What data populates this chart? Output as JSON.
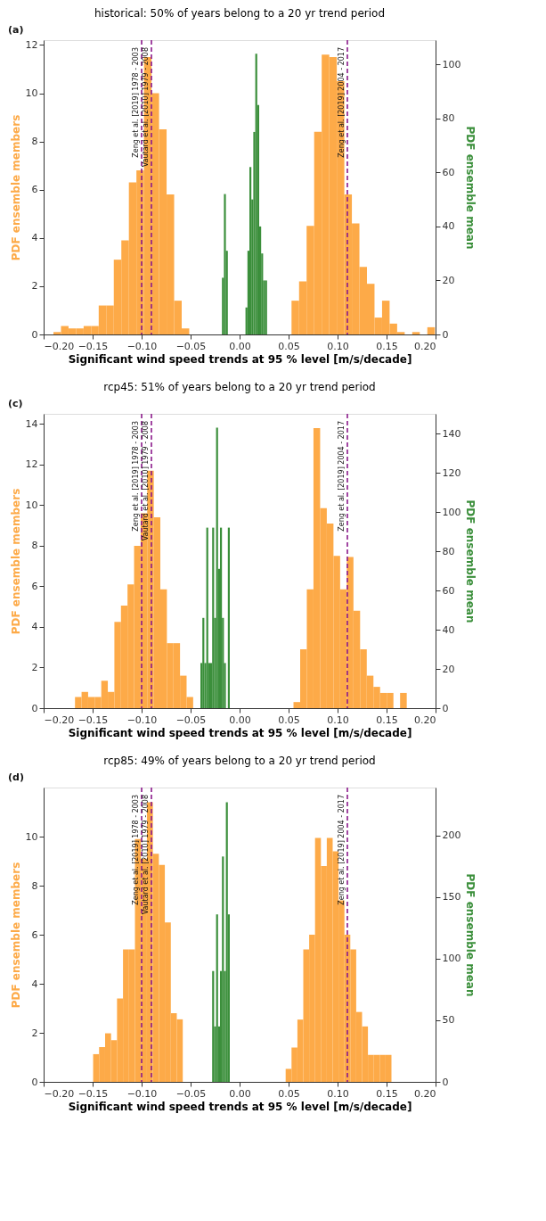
{
  "chart_data": [
    {
      "type": "histogram",
      "title": "historical: 50% of years belong to a 20 yr trend period",
      "xlabel": "Significant wind speed trends at 95 % level [m/s/decade]",
      "ylabel": "PDF ensemble members",
      "y2label": "PDF ensemble mean",
      "annotations": [
        "(a)"
      ],
      "xlim": [
        -0.2,
        0.2
      ],
      "xticks": [
        {
          "value": -0.2,
          "label": "−0.20"
        },
        {
          "value": -0.15,
          "label": "−0.15"
        },
        {
          "value": -0.1,
          "label": "−0.10"
        },
        {
          "value": -0.05,
          "label": "−0.05"
        },
        {
          "value": 0.0,
          "label": "0.00"
        },
        {
          "value": 0.05,
          "label": "0.05"
        },
        {
          "value": 0.1,
          "label": "0.10"
        },
        {
          "value": 0.15,
          "label": "0.15"
        },
        {
          "value": 0.2,
          "label": "0.20"
        }
      ],
      "ylim": [
        0,
        12.2
      ],
      "yticks": [
        0,
        2,
        4,
        6,
        8,
        10,
        12
      ],
      "y2lim": [
        0,
        109
      ],
      "y2ticks": [
        0,
        20,
        40,
        60,
        80,
        100
      ],
      "grid": false,
      "bins": [
        -0.19,
        -0.1823,
        -0.1746,
        -0.1669,
        -0.1592,
        -0.1515,
        -0.1438,
        -0.1361,
        -0.1284,
        -0.1207,
        -0.113,
        -0.1053,
        -0.0976,
        -0.0899,
        -0.0822,
        -0.0745,
        -0.0668,
        -0.0591,
        -0.0514,
        -0.018,
        -0.016,
        -0.014,
        -0.012,
        0.006,
        0.008,
        0.01,
        0.012,
        0.014,
        0.016,
        0.018,
        0.02,
        0.022,
        0.024,
        0.026,
        0.028,
        0.053,
        0.0607,
        0.0684,
        0.0761,
        0.0838,
        0.0915,
        0.0992,
        0.1069,
        0.1146,
        0.1223,
        0.13,
        0.1377,
        0.1454,
        0.1531,
        0.1608,
        0.1685,
        0.1762,
        0.1839,
        0.1916,
        0.1993
      ],
      "series": [
        {
          "color": "#fdaa48",
          "axis": "y",
          "values": [
            0.1,
            0.35,
            0.25,
            0.25,
            0.35,
            0.35,
            1.2,
            1.2,
            3.1,
            3.9,
            6.3,
            6.8,
            11.5,
            10,
            8.5,
            5.8,
            1.4,
            0.25,
            null,
            null,
            null,
            null,
            null,
            null,
            null,
            null,
            null,
            null,
            null,
            null,
            null,
            null,
            null,
            null,
            null,
            1.4,
            2.2,
            4.5,
            8.4,
            11.6,
            11.5,
            10.5,
            5.8,
            4.6,
            2.8,
            2.1,
            0.7,
            1.4,
            0.45,
            0.1,
            null,
            0.1,
            null,
            0.3
          ]
        },
        {
          "color": "#3b8f3b",
          "axis": "y2",
          "values": [
            null,
            null,
            null,
            null,
            null,
            null,
            null,
            null,
            null,
            null,
            null,
            null,
            null,
            null,
            null,
            null,
            null,
            null,
            null,
            21,
            52,
            31,
            null,
            10,
            31,
            62,
            50,
            75,
            104,
            85,
            40,
            30,
            20,
            20,
            null,
            null,
            null,
            null,
            null,
            null,
            null,
            null,
            null,
            null,
            null,
            null,
            null,
            null,
            null,
            null,
            null,
            null,
            null,
            null
          ]
        }
      ],
      "ref_lines": [
        {
          "axis": "x",
          "value": -0.1,
          "label": "Zeng et al. [2019] 1978 - 2003",
          "color": "#8b1a8b",
          "line_style": "dashed"
        },
        {
          "axis": "x",
          "value": -0.09,
          "label": "Vautard et al. [2010] 1979 - 2008",
          "color": "#8b1a8b",
          "line_style": "dashed"
        },
        {
          "axis": "x",
          "value": 0.11,
          "label": "Zeng et al. [2019] 2004 - 2017",
          "color": "#8b1a8b",
          "line_style": "dashed"
        }
      ]
    },
    {
      "type": "histogram",
      "title": "rcp45: 51% of years belong to a 20 yr trend period",
      "xlabel": "Significant wind speed trends at 95 % level [m/s/decade]",
      "ylabel": "PDF ensemble members",
      "y2label": "PDF ensemble mean",
      "annotations": [
        "(c)"
      ],
      "xlim": [
        -0.2,
        0.2
      ],
      "xticks": [
        {
          "value": -0.2,
          "label": "−0.20"
        },
        {
          "value": -0.15,
          "label": "−0.15"
        },
        {
          "value": -0.1,
          "label": "−0.10"
        },
        {
          "value": -0.05,
          "label": "−0.05"
        },
        {
          "value": 0.0,
          "label": "0.00"
        },
        {
          "value": 0.05,
          "label": "0.05"
        },
        {
          "value": 0.1,
          "label": "0.10"
        },
        {
          "value": 0.15,
          "label": "0.15"
        },
        {
          "value": 0.2,
          "label": "0.20"
        }
      ],
      "ylim": [
        0,
        14.5
      ],
      "yticks": [
        0,
        2,
        4,
        6,
        8,
        10,
        12,
        14
      ],
      "y2lim": [
        0,
        150
      ],
      "y2ticks": [
        0,
        20,
        40,
        60,
        80,
        100,
        120,
        140
      ],
      "grid": false,
      "bins": [
        -0.168,
        -0.1613,
        -0.1546,
        -0.1479,
        -0.1412,
        -0.1345,
        -0.1278,
        -0.1211,
        -0.1144,
        -0.1077,
        -0.101,
        -0.0943,
        -0.0876,
        -0.0809,
        -0.0742,
        -0.0675,
        -0.0608,
        -0.0541,
        -0.0474,
        -0.04,
        -0.038,
        -0.036,
        -0.034,
        -0.032,
        -0.03,
        -0.028,
        -0.026,
        -0.024,
        -0.022,
        -0.02,
        -0.018,
        -0.016,
        -0.014,
        -0.012,
        -0.01,
        0.055,
        0.0618,
        0.0686,
        0.0754,
        0.0822,
        0.089,
        0.0958,
        0.1026,
        0.1094,
        0.1162,
        0.123,
        0.1298,
        0.1366,
        0.1434,
        0.1502,
        0.157,
        0.1638,
        0.1706
      ],
      "series": [
        {
          "color": "#fdaa48",
          "axis": "y",
          "values": [
            0.55,
            0.8,
            0.55,
            0.55,
            1.35,
            0.8,
            4.25,
            5.05,
            6.1,
            8,
            9.6,
            11.7,
            9.4,
            5.85,
            3.2,
            3.2,
            1.6,
            0.55,
            null,
            null,
            null,
            null,
            null,
            null,
            null,
            null,
            null,
            null,
            null,
            null,
            null,
            null,
            null,
            null,
            null,
            0.3,
            2.9,
            5.85,
            13.8,
            9.85,
            9.1,
            7.5,
            5.85,
            7.45,
            4.8,
            2.9,
            1.6,
            1.05,
            0.75,
            0.75,
            null,
            0.75
          ]
        },
        {
          "color": "#3b8f3b",
          "axis": "y2",
          "values": [
            null,
            null,
            null,
            null,
            null,
            null,
            null,
            null,
            null,
            null,
            null,
            null,
            null,
            null,
            null,
            null,
            null,
            null,
            null,
            23,
            46,
            23,
            92,
            23,
            23,
            92,
            46,
            143,
            71,
            92,
            46,
            23,
            null,
            92,
            null,
            null,
            null,
            null,
            null,
            null,
            null,
            null,
            null,
            null,
            null,
            null,
            null,
            null,
            null,
            null,
            null,
            null
          ]
        }
      ],
      "ref_lines": [
        {
          "axis": "x",
          "value": -0.1,
          "label": "Zeng et al. [2019] 1978 - 2003",
          "color": "#8b1a8b",
          "line_style": "dashed"
        },
        {
          "axis": "x",
          "value": -0.09,
          "label": "Vautard et al. [2010] 1979 - 2008",
          "color": "#8b1a8b",
          "line_style": "dashed"
        },
        {
          "axis": "x",
          "value": 0.11,
          "label": "Zeng et al. [2019] 2004 - 2017",
          "color": "#8b1a8b",
          "line_style": "dashed"
        }
      ]
    },
    {
      "type": "histogram",
      "title": "rcp85: 49% of years belong to a 20 yr trend period",
      "xlabel": "Significant wind speed trends at 95 % level [m/s/decade]",
      "ylabel": "PDF ensemble members",
      "y2label": "PDF ensemble mean",
      "annotations": [
        "(d)"
      ],
      "xlim": [
        -0.2,
        0.2
      ],
      "xticks": [
        {
          "value": -0.2,
          "label": "−0.20"
        },
        {
          "value": -0.15,
          "label": "−0.15"
        },
        {
          "value": -0.1,
          "label": "−0.10"
        },
        {
          "value": -0.05,
          "label": "−0.05"
        },
        {
          "value": 0.0,
          "label": "0.00"
        },
        {
          "value": 0.05,
          "label": "0.05"
        },
        {
          "value": 0.1,
          "label": "0.10"
        },
        {
          "value": 0.15,
          "label": "0.15"
        },
        {
          "value": 0.2,
          "label": "0.20"
        }
      ],
      "ylim": [
        0,
        12
      ],
      "yticks": [
        0,
        2,
        4,
        6,
        8,
        10
      ],
      "y2lim": [
        0,
        239
      ],
      "y2ticks": [
        0,
        50,
        100,
        150,
        200
      ],
      "grid": false,
      "bins": [
        -0.1495,
        -0.1434,
        -0.1373,
        -0.1312,
        -0.1251,
        -0.119,
        -0.1129,
        -0.1068,
        -0.1007,
        -0.0946,
        -0.0885,
        -0.0824,
        -0.0763,
        -0.0702,
        -0.0641,
        -0.058,
        -0.028,
        -0.026,
        -0.024,
        -0.022,
        -0.02,
        -0.018,
        -0.016,
        -0.014,
        -0.012,
        -0.01,
        0.047,
        0.053,
        0.059,
        0.065,
        0.071,
        0.077,
        0.083,
        0.089,
        0.095,
        0.101,
        0.107,
        0.113,
        0.119,
        0.125,
        0.131,
        0.137,
        0.143,
        0.149,
        0.155
      ],
      "series": [
        {
          "color": "#fdaa48",
          "axis": "y",
          "values": [
            1.13,
            1.42,
            1.98,
            1.7,
            3.4,
            5.4,
            5.4,
            9.9,
            9.1,
            11.4,
            9.3,
            8.85,
            6.5,
            2.8,
            2.55,
            null,
            null,
            null,
            null,
            null,
            null,
            null,
            null,
            null,
            null,
            null,
            0.53,
            1.4,
            2.54,
            5.4,
            6.0,
            9.95,
            8.8,
            9.95,
            9.4,
            7.4,
            6.0,
            5.4,
            2.85,
            2.26,
            1.1,
            1.1,
            1.1,
            1.1
          ]
        },
        {
          "color": "#3b8f3b",
          "axis": "y2",
          "values": [
            null,
            null,
            null,
            null,
            null,
            null,
            null,
            null,
            null,
            null,
            null,
            null,
            null,
            null,
            null,
            null,
            90,
            45,
            136,
            45,
            90,
            183,
            90,
            227,
            136,
            null,
            null,
            null,
            null,
            null,
            null,
            null,
            null,
            null,
            null,
            null,
            null,
            null,
            null,
            null,
            null,
            null,
            null,
            null
          ]
        }
      ],
      "ref_lines": [
        {
          "axis": "x",
          "value": -0.1,
          "label": "Zeng et al. [2019] 1978 - 2003",
          "color": "#8b1a8b",
          "line_style": "dashed"
        },
        {
          "axis": "x",
          "value": -0.09,
          "label": "Vautard et al. [2010] 1979 - 2008",
          "color": "#8b1a8b",
          "line_style": "dashed"
        },
        {
          "axis": "x",
          "value": 0.11,
          "label": "Zeng et al. [2019] 2004 - 2017",
          "color": "#8b1a8b",
          "line_style": "dashed"
        }
      ]
    }
  ]
}
